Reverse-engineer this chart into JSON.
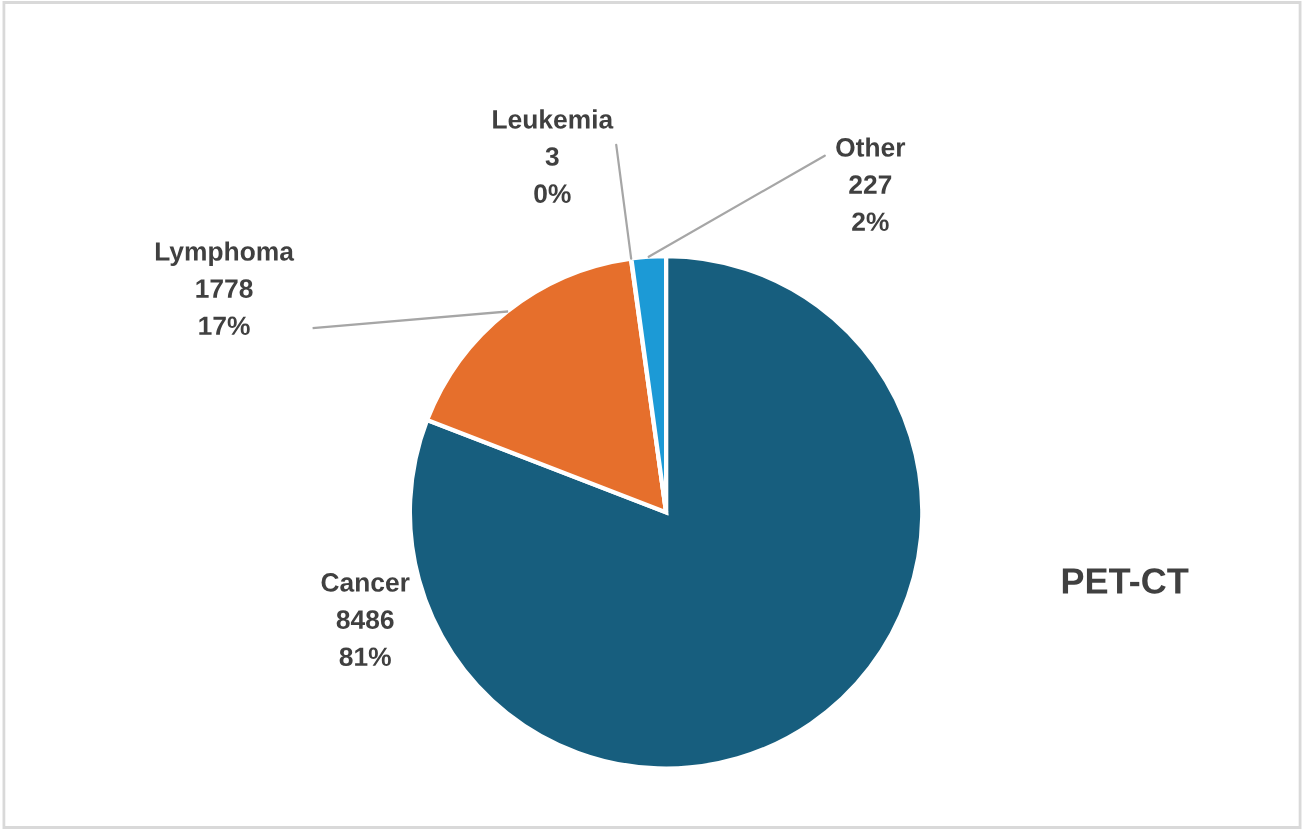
{
  "chart_data": {
    "type": "pie",
    "title": "PET-CT",
    "categories": [
      "Cancer",
      "Lymphoma",
      "Leukemia",
      "Other"
    ],
    "values": [
      8486,
      1778,
      3,
      227
    ],
    "data_labels": true,
    "annotations": [
      "81%",
      "17%",
      "0%",
      "2%"
    ],
    "colors": [
      "#175e7e",
      "#e66f2c",
      "#a5a5a5",
      "#1c9ad6"
    ],
    "legend": false
  }
}
